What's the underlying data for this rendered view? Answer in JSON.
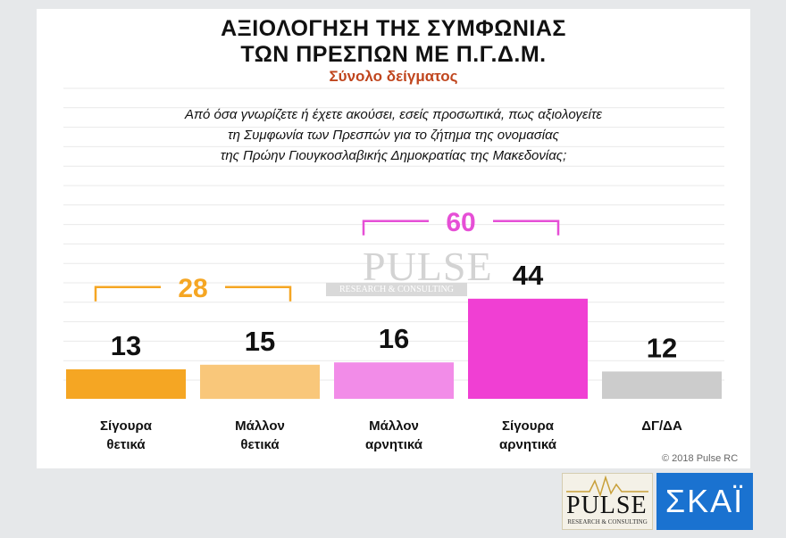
{
  "header": {
    "title_line1": "ΑΞΙΟΛΟΓΗΣΗ ΤΗΣ ΣΥΜΦΩΝΙΑΣ",
    "title_line2": "ΤΩΝ ΠΡΕΣΠΩΝ ΜΕ Π.Γ.Δ.Μ.",
    "subtitle": "Σύνολο δείγματος"
  },
  "question": {
    "line1": "Από όσα γνωρίζετε ή έχετε ακούσει, εσείς προσωπικά, πως αξιολογείτε",
    "line2": "τη Συμφωνία των Πρεσπών για το ζήτημα της ονομασίας",
    "line3": "της Πρώην Γιουγκοσλαβικής Δημοκρατίας της Μακεδονίας;"
  },
  "chart_data": {
    "type": "bar",
    "categories": [
      [
        "Σίγουρα",
        "θετικά"
      ],
      [
        "Μάλλον",
        "θετικά"
      ],
      [
        "Μάλλον",
        "αρνητικά"
      ],
      [
        "Σίγουρα",
        "αρνητικά"
      ],
      [
        "ΔΓ/ΔΑ"
      ]
    ],
    "values": [
      13,
      15,
      16,
      44,
      12
    ],
    "value_labels": [
      "13",
      "15",
      "16",
      "44",
      "12"
    ],
    "colors": [
      "#f5a623",
      "#f9c77a",
      "#f28ce8",
      "#f03fd3",
      "#cccccc"
    ],
    "groups": [
      {
        "label": "28",
        "from": 0,
        "to": 1,
        "color": "#f5a623"
      },
      {
        "label": "60",
        "from": 2,
        "to": 3,
        "color": "#e64fd6"
      }
    ],
    "ylim": [
      0,
      100
    ],
    "grid": true
  },
  "watermark": {
    "main": "PULSE",
    "sub": "RESEARCH & CONSULTING"
  },
  "footer": {
    "copyright": "© 2018 Pulse RC"
  },
  "logos": {
    "pulse_word": "PULSE",
    "pulse_sub": "RESEARCH & CONSULTING",
    "skai": "ΣΚΑΪ"
  }
}
